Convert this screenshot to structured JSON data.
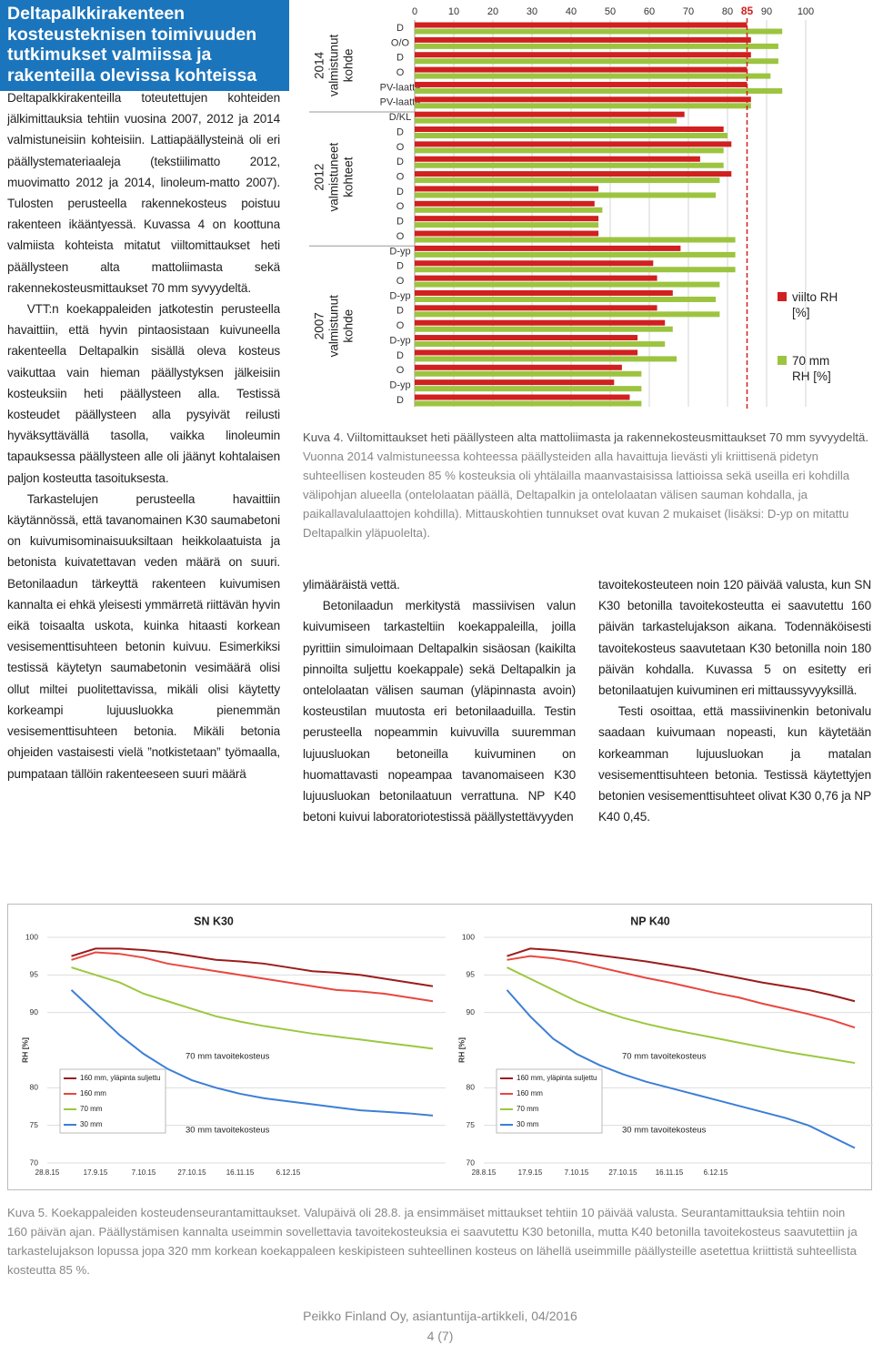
{
  "article": {
    "title": "Deltapalkkirakenteen kosteusteknisen toimivuuden tutkimukset valmiissa ja rakenteilla olevissa kohteissa",
    "left_paragraphs": [
      "Deltapalkkirakenteilla toteutettujen kohteiden jälkimittauksia tehtiin vuosina 2007, 2012 ja 2014 valmistuneisiin kohteisiin. Lattiapäällysteinä oli eri päällystemateriaaleja (tekstiilimatto 2012, muovimatto 2012 ja 2014, linoleum-matto 2007). Tulosten perusteella rakennekosteus poistuu rakenteen ikääntyessä. Kuvassa 4 on koottuna valmiista kohteista mitatut viiltomittaukset heti päällysteen alta mattoliimasta sekä rakennekosteusmittaukset 70 mm syvyydeltä.",
      "VTT:n koekappaleiden jatkotestin perusteella havaittiin, että hyvin pintaosistaan kuivuneella rakenteella Deltapalkin sisällä oleva kosteus vaikuttaa vain hieman päällystyksen jälkeisiin kosteuksiin heti päällysteen alla. Testissä kosteudet päällysteen alla pysyivät reilusti hyväksyttävällä tasolla, vaikka linoleumin tapauksessa päällysteen alle oli jäänyt kohtalaisen paljon kosteutta tasoituksesta.",
      "Tarkastelujen perusteella havaittiin käytännössä, että tavanomainen K30 saumabetoni on kuivumisominaisuuksiltaan heikkolaatuista ja betonista kuivatettavan veden määrä on suuri. Betonilaadun tärkeyttä rakenteen kuivumisen kannalta ei ehkä yleisesti ymmärretä riittävän hyvin eikä toisaalta uskota, kuinka hitaasti korkean vesisementtisuhteen betonin kuivuu. Esimerkiksi testissä käytetyn saumabetonin vesimäärä olisi ollut miltei puolitettavissa, mikäli olisi käytetty korkeampi lujuusluokka pienemmän vesisementtisuhteen betonia. Mikäli betonia ohjeiden vastaisesti vielä ”notkistetaan” työmaalla, pumpataan tällöin rakenteeseen suuri määrä"
    ],
    "middle_paragraphs": [
      "ylimääräistä vettä.",
      "Betonilaadun merkitystä massiivisen valun kuivumiseen tarkasteltiin koekappaleilla, joilla pyrittiin simuloimaan Deltapalkin sisäosan (kaikilta pinnoilta suljettu koekappale) sekä Deltapalkin ja ontelolaatan välisen sauman (yläpinnasta avoin) kosteustilan muutosta eri betonilaaduilla. Testin perusteella nopeammin kuivuvilla suuremman lujuusluokan betoneilla kuivuminen on huomattavasti nopeampaa tavanomaiseen K30 lujuusluokan betonilaatuun verrattuna. NP K40 betoni kuivui laboratoriotestissä päällystettävyyden"
    ],
    "right_paragraphs": [
      "tavoitekosteuteen noin 120 päivää valusta, kun SN K30 betonilla tavoitekosteutta ei saavutettu 160 päivän tarkastelujakson aikana. Todennäköisesti tavoitekosteus saavutetaan K30 betonilla noin 180 päivän kohdalla. Kuvassa 5 on esitetty eri betonilaatujen kuivuminen eri mittaussyvyyksillä.",
      "Testi osoittaa, että massiivinenkin betonivalu saadaan kuivumaan nopeasti, kun käytetään korkeamman lujuusluokan ja matalan vesisementtisuhteen betonia. Testissä käytettyjen betonien vesisementtisuhteet olivat K30 0,76 ja NP K40 0,45."
    ],
    "figure4_caption": {
      "lead": "Kuva 4. Viiltomittaukset heti päällysteen alta mattoliimasta ja rakennekosteusmittaukset 70 mm syvyydeltä.",
      "text": "Vuonna 2014 valmistuneessa kohteessa päällysteiden alla havaittuja lievästi yli kriittisenä pidetyn suhteellisen kosteuden 85 % kosteuksia oli yhtälailla maanvastaisissa lattioissa sekä useilla eri kohdilla välipohjan alueella (ontelolaatan päällä, Deltapalkin ja ontelolaatan välisen sauman kohdalla, ja paikallavalulaattojen kohdilla). Mittauskohtien tunnukset ovat kuvan 2 mukaiset (lisäksi: D-yp on mitattu Deltapalkin yläpuolelta)."
    },
    "figure5_caption": "Kuva 5. Koekappaleiden kosteudenseurantamittaukset. Valupäivä oli 28.8. ja ensimmäiset mittaukset tehtiin 10 päivää valusta. Seurantamittauksia tehtiin noin 160 päivän ajan. Päällystämisen kannalta useimmin sovellettavia tavoitekosteuksia ei saavutettu K30 betonilla, mutta K40 betonilla tavoitekosteus saavutettiin ja tarkastelujakson lopussa jopa 320 mm korkean koekappaleen keskipisteen suhteellinen kosteus on lähellä useimmille päällysteille asetettua kriittistä suhteellista kosteutta 85 %.",
    "footer": {
      "publisher": "Peikko Finland Oy, asiantuntija-artikkeli, 04/2016",
      "page": "4 (7)"
    }
  },
  "chart_data": [
    {
      "type": "bar",
      "groups": [
        {
          "label": [
            "2014",
            "valmistunut",
            "kohde"
          ],
          "categories": [
            "D",
            "O/O",
            "D",
            "O",
            "PV-laatta",
            "PV-laatta"
          ]
        },
        {
          "label": [
            "2012",
            "valmistuneet",
            "kohteet"
          ],
          "categories": [
            "D/KL",
            "D",
            "O",
            "D",
            "O",
            "D",
            "O",
            "D",
            "O"
          ]
        },
        {
          "label": [
            "2007",
            "valmistunut",
            "kohde"
          ],
          "categories": [
            "D-yp",
            "D",
            "O",
            "D-yp",
            "D",
            "O",
            "D-yp",
            "D",
            "O",
            "D-yp",
            "D"
          ]
        }
      ],
      "series": [
        {
          "name": "viilto RH [%]",
          "color": "#d0201f",
          "values": [
            85,
            86,
            86,
            85,
            85,
            86,
            69,
            79,
            81,
            73,
            81,
            47,
            46,
            47,
            47,
            68,
            61,
            62,
            66,
            62,
            64,
            57,
            57,
            53,
            51,
            55
          ]
        },
        {
          "name": "70 mm RH [%]",
          "color": "#9cc440",
          "values": [
            94,
            93,
            93,
            91,
            94,
            86,
            67,
            80,
            79,
            79,
            78,
            77,
            48,
            47,
            82,
            82,
            82,
            78,
            77,
            78,
            66,
            64,
            67,
            58,
            58,
            58
          ]
        }
      ],
      "xlim": [
        0,
        100
      ],
      "xticks": [
        0,
        10,
        20,
        30,
        40,
        50,
        60,
        70,
        80,
        90,
        100
      ],
      "reference_line": {
        "value": 85,
        "color": "#d0201f"
      },
      "grid": true
    },
    {
      "type": "line",
      "title": "SN K30",
      "ylabel": "RH [%]",
      "categories": [
        "28.8.15",
        null,
        "17.9.15",
        null,
        "7.10.15",
        null,
        "27.10.15",
        null,
        "16.11.15",
        null,
        "6.12.15",
        null,
        null,
        null,
        null,
        null,
        null
      ],
      "series": [
        {
          "name": "160 mm, yläpinta suljettu",
          "color": "#9b1c1c",
          "values": [
            null,
            97.5,
            98.5,
            98.5,
            98.3,
            98,
            97.5,
            97,
            96.8,
            96.5,
            96,
            95.5,
            95.3,
            95,
            94.5,
            94,
            93.5
          ]
        },
        {
          "name": "160 mm",
          "color": "#e8473f",
          "values": [
            null,
            97,
            98,
            97.8,
            97.3,
            96.5,
            96,
            95.5,
            95,
            94.5,
            94,
            93.5,
            93,
            92.8,
            92.5,
            92,
            91.5
          ]
        },
        {
          "name": "70 mm",
          "color": "#9bc83f",
          "values": [
            null,
            96,
            95,
            94,
            92.5,
            91.5,
            90.5,
            89.5,
            88.8,
            88.2,
            87.7,
            87.2,
            86.8,
            86.4,
            86,
            85.6,
            85.2
          ]
        },
        {
          "name": "30 mm",
          "color": "#3c7fd6",
          "values": [
            null,
            93,
            90,
            87,
            84.5,
            82.5,
            81,
            80,
            79.2,
            78.6,
            78.2,
            77.8,
            77.4,
            77,
            76.8,
            76.6,
            76.3
          ]
        }
      ],
      "ylim": [
        70,
        100
      ],
      "yticks": [
        70,
        75,
        80,
        90,
        95,
        100
      ],
      "annotations": [
        "70 mm tavoitekosteus",
        "30 mm tavoitekosteus"
      ],
      "grid": true
    },
    {
      "type": "line",
      "title": "NP K40",
      "ylabel": "RH [%]",
      "categories": [
        "28.8.15",
        null,
        "17.9.15",
        null,
        "7.10.15",
        null,
        "27.10.15",
        null,
        "16.11.15",
        null,
        "6.12.15",
        null,
        null,
        null,
        null,
        null,
        null
      ],
      "series": [
        {
          "name": "160 mm, yläpinta suljettu",
          "color": "#9b1c1c",
          "values": [
            null,
            97.5,
            98.5,
            98.3,
            98,
            97.6,
            97.2,
            96.8,
            96.3,
            95.8,
            95.2,
            94.6,
            94,
            93.5,
            93,
            92.3,
            91.5
          ]
        },
        {
          "name": "160 mm",
          "color": "#e8473f",
          "values": [
            null,
            97,
            97.5,
            97.2,
            96.7,
            96,
            95.3,
            94.6,
            94,
            93.3,
            92.6,
            92,
            91.2,
            90.5,
            89.8,
            89,
            88
          ]
        },
        {
          "name": "70 mm",
          "color": "#9bc83f",
          "values": [
            null,
            96,
            94.5,
            93,
            91.5,
            90.3,
            89.3,
            88.5,
            87.8,
            87.2,
            86.6,
            86,
            85.4,
            84.8,
            84.3,
            83.8,
            83.3
          ]
        },
        {
          "name": "30 mm",
          "color": "#3c7fd6",
          "values": [
            null,
            93,
            89.5,
            86.5,
            84.5,
            83,
            81.8,
            80.8,
            80,
            79.2,
            78.4,
            77.6,
            76.8,
            76,
            75,
            73.5,
            72
          ]
        }
      ],
      "ylim": [
        70,
        100
      ],
      "yticks": [
        70,
        75,
        80,
        90,
        95,
        100
      ],
      "annotations": [
        "70 mm tavoitekosteus",
        "30 mm tavoitekosteus"
      ],
      "grid": true
    }
  ]
}
